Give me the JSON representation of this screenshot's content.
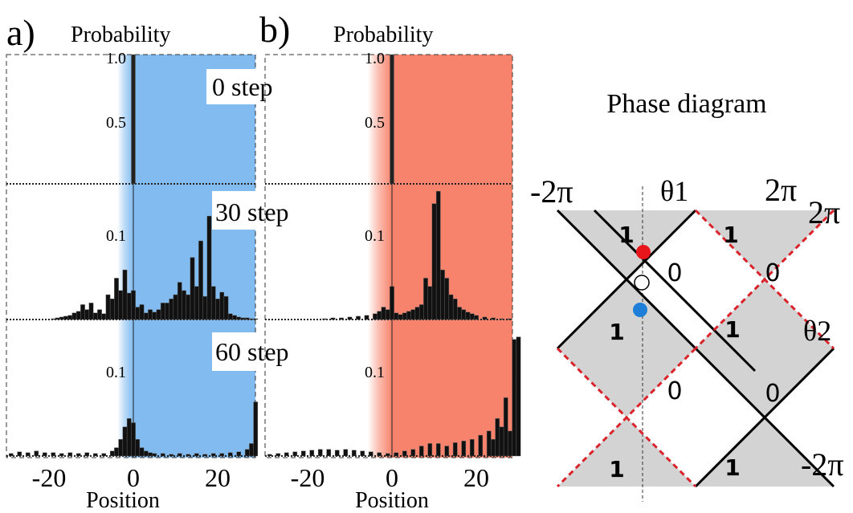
{
  "panels": [
    {
      "letter": "a)",
      "ylabel": "Probability",
      "xlabel": "Position",
      "x_ticks": [
        "-20",
        "0",
        "20"
      ],
      "color": "#82bbef",
      "rows": [
        {
          "step_label": "0 step",
          "y_ticks": [
            "1.0",
            "0.5"
          ],
          "ylim": [
            0,
            1.0
          ]
        },
        {
          "step_label": "30 step",
          "y_ticks": [
            "0.1"
          ],
          "ylim": [
            0,
            0.16
          ]
        },
        {
          "step_label": "60 step",
          "y_ticks": [
            "0.1"
          ],
          "ylim": [
            0,
            0.16
          ]
        }
      ]
    },
    {
      "letter": "b)",
      "ylabel": "Probability",
      "xlabel": "Position",
      "x_ticks": [
        "-20",
        "0",
        "20"
      ],
      "color": "#f7836c",
      "rows": [
        {
          "step_label": "",
          "y_ticks": [
            "1.0",
            "0.5"
          ],
          "ylim": [
            0,
            1.0
          ]
        },
        {
          "step_label": "",
          "y_ticks": [
            "0.1"
          ],
          "ylim": [
            0,
            0.16
          ]
        },
        {
          "step_label": "",
          "y_ticks": [
            "0.1"
          ],
          "ylim": [
            0,
            0.16
          ]
        }
      ]
    }
  ],
  "phase": {
    "title": "Phase diagram",
    "x_left": "-2π",
    "x_right": "2π",
    "x_axis_label": "θ1",
    "y_axis_label": "θ2",
    "y_top": "2π",
    "y_bottom": "-2π",
    "region_labels": [
      "1",
      "1",
      "0",
      "0",
      "1",
      "1",
      "0",
      "0",
      "1",
      "1"
    ],
    "dot_colors": {
      "red": "#e8151b",
      "blue": "#1e7fd8",
      "open": "#ffffff"
    },
    "shade_color": "#d3d3d3",
    "solid_color": "#000000",
    "dashed_color": "#d9242c"
  },
  "chart_data": [
    {
      "type": "bar",
      "title": "a) 0 step",
      "xlabel": "Position",
      "ylabel": "Probability",
      "xlim": [
        -30,
        30
      ],
      "ylim": [
        0,
        1.0
      ],
      "x": [
        0
      ],
      "values": [
        1.0
      ]
    },
    {
      "type": "bar",
      "title": "a) 30 step",
      "xlabel": "Position",
      "ylabel": "Probability",
      "xlim": [
        -30,
        30
      ],
      "ylim": [
        0,
        0.16
      ],
      "x": [
        -19,
        -18,
        -17,
        -16,
        -15,
        -14,
        -13,
        -12,
        -11,
        -10,
        -9,
        -8,
        -7,
        -6,
        -5,
        -4,
        -3,
        -2,
        -1,
        0,
        1,
        2,
        3,
        4,
        5,
        6,
        7,
        8,
        9,
        10,
        11,
        12,
        13,
        14,
        15,
        16,
        17,
        18,
        19,
        20,
        21,
        22,
        23,
        24,
        25,
        26,
        27,
        28,
        29
      ],
      "values": [
        0.001,
        0.002,
        0.003,
        0.004,
        0.005,
        0.008,
        0.01,
        0.018,
        0.012,
        0.02,
        0.008,
        0.012,
        0.007,
        0.03,
        0.025,
        0.05,
        0.035,
        0.06,
        0.032,
        0.035,
        0.015,
        0.018,
        0.008,
        0.012,
        0.009,
        0.012,
        0.02,
        0.02,
        0.025,
        0.03,
        0.045,
        0.035,
        0.03,
        0.075,
        0.04,
        0.095,
        0.028,
        0.125,
        0.04,
        0.025,
        0.033,
        0.028,
        0.007,
        0.005,
        0.003,
        0.002,
        0.002,
        0.001,
        0.001
      ]
    },
    {
      "type": "bar",
      "title": "a) 60 step",
      "xlabel": "Position",
      "ylabel": "Probability",
      "xlim": [
        -30,
        30
      ],
      "ylim": [
        0,
        0.16
      ],
      "x": [
        -29,
        -27,
        -25,
        -23,
        -21,
        -19,
        -17,
        -15,
        -13,
        -11,
        -9,
        -7,
        -5,
        -4,
        -3,
        -2,
        -1,
        0,
        1,
        2,
        3,
        4,
        5,
        7,
        9,
        11,
        13,
        15,
        17,
        19,
        21,
        23,
        25,
        27,
        28,
        29
      ],
      "values": [
        0.003,
        0.005,
        0.004,
        0.006,
        0.004,
        0.004,
        0.003,
        0.004,
        0.003,
        0.004,
        0.003,
        0.003,
        0.006,
        0.01,
        0.02,
        0.035,
        0.045,
        0.04,
        0.02,
        0.01,
        0.006,
        0.004,
        0.003,
        0.003,
        0.002,
        0.003,
        0.002,
        0.003,
        0.002,
        0.003,
        0.003,
        0.004,
        0.005,
        0.008,
        0.015,
        0.065
      ]
    },
    {
      "type": "bar",
      "title": "b) 0 step",
      "xlabel": "Position",
      "ylabel": "Probability",
      "xlim": [
        -30,
        30
      ],
      "ylim": [
        0,
        1.0
      ],
      "x": [
        0
      ],
      "values": [
        1.0
      ]
    },
    {
      "type": "bar",
      "title": "b) 30 step",
      "xlabel": "Position",
      "ylabel": "Probability",
      "xlim": [
        -30,
        30
      ],
      "ylim": [
        0,
        0.16
      ],
      "x": [
        -16,
        -14,
        -12,
        -10,
        -8,
        -6,
        -4,
        -3,
        -2,
        -1,
        0,
        1,
        2,
        3,
        4,
        5,
        6,
        7,
        8,
        9,
        10,
        11,
        12,
        13,
        14,
        15,
        16,
        17,
        18,
        19,
        20,
        22,
        24,
        26,
        28
      ],
      "values": [
        0.001,
        0.002,
        0.002,
        0.003,
        0.004,
        0.005,
        0.007,
        0.01,
        0.015,
        0.012,
        0.04,
        0.008,
        0.006,
        0.008,
        0.01,
        0.012,
        0.015,
        0.018,
        0.05,
        0.04,
        0.14,
        0.155,
        0.06,
        0.05,
        0.03,
        0.025,
        0.015,
        0.012,
        0.009,
        0.007,
        0.005,
        0.003,
        0.002,
        0.001,
        0.001
      ]
    },
    {
      "type": "bar",
      "title": "b) 60 step",
      "xlabel": "Position",
      "ylabel": "Probability",
      "xlim": [
        -30,
        30
      ],
      "ylim": [
        0,
        0.16
      ],
      "x": [
        -29,
        -27,
        -25,
        -23,
        -21,
        -19,
        -17,
        -15,
        -13,
        -11,
        -9,
        -7,
        -5,
        -3,
        -1,
        1,
        3,
        5,
        7,
        9,
        11,
        13,
        15,
        17,
        19,
        21,
        23,
        24,
        25,
        26,
        27,
        28,
        29,
        30
      ],
      "values": [
        0.002,
        0.003,
        0.004,
        0.005,
        0.006,
        0.007,
        0.008,
        0.008,
        0.007,
        0.008,
        0.007,
        0.006,
        0.005,
        0.004,
        0.003,
        0.004,
        0.006,
        0.008,
        0.012,
        0.015,
        0.015,
        0.012,
        0.016,
        0.018,
        0.02,
        0.025,
        0.03,
        0.02,
        0.045,
        0.035,
        0.07,
        0.03,
        0.14,
        0.143
      ]
    }
  ]
}
